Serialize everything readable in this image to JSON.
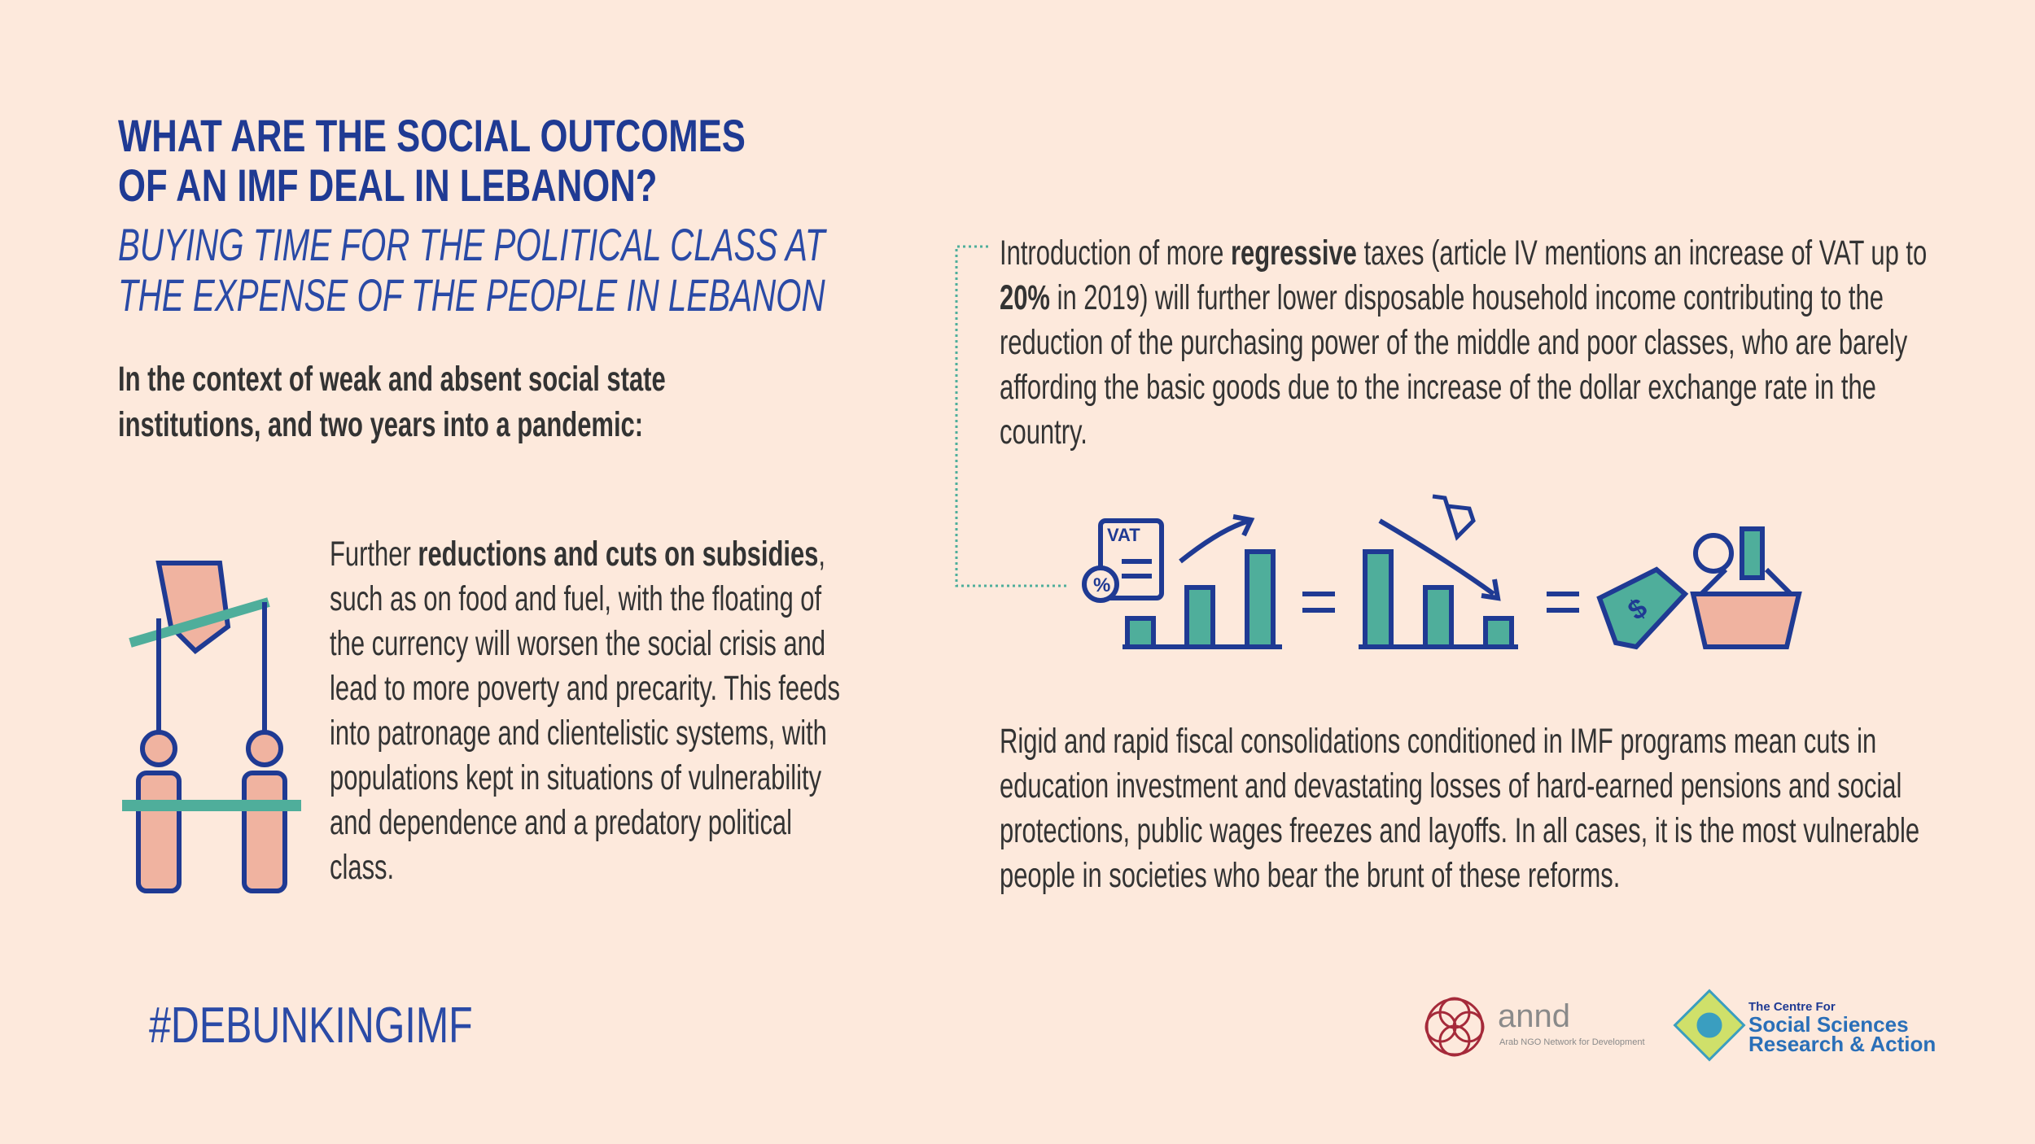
{
  "header": {
    "title": [
      "WHAT ARE THE SOCIAL OUTCOMES",
      "OF AN IMF DEAL IN LEBANON?"
    ],
    "subtitle": [
      "BUYING TIME FOR THE POLITICAL CLASS AT",
      "THE EXPENSE OF THE PEOPLE IN LEBANON"
    ],
    "intro": [
      "In the context of weak and absent social state",
      "institutions, and two years into a pandemic:"
    ]
  },
  "sections": [
    {
      "parts": [
        "Further ",
        "reductions and cuts on subsidies",
        ", such as on food and fuel, with the floating of the currency will worsen the social crisis and lead to more poverty and precarity. This feeds into patronage and clientelistic systems, with populations kept in situations of vulnerability and dependence and a predatory political class."
      ]
    },
    {
      "parts": [
        "Introduction of more ",
        "regressive",
        " taxes (article IV mentions an increase of VAT up to ",
        "20%",
        " in 2019) will further lower disposable household income contributing to the reduction of the purchasing power of the middle and poor classes, who are barely affording the basic goods due to the increase of the dollar exchange rate in the country."
      ]
    },
    {
      "parts": [
        "Rigid and rapid fiscal consolidations conditioned in IMF programs mean cuts in education investment and devastating losses of hard-earned pensions and social protections, public wages freezes and layoffs. In all cases, it is the most vulnerable people in societies who bear the brunt of these reforms."
      ]
    }
  ],
  "icon_labels": [
    "VAT",
    "%",
    "$"
  ],
  "footer": {
    "hashtag": "#DEBUNKINGIMF",
    "logos": [
      {
        "name": "annd",
        "tagline": "Arab NGO Network for Development"
      },
      {
        "lines": [
          "The Centre For",
          "Social Sciences",
          "Research & Action"
        ]
      }
    ]
  }
}
